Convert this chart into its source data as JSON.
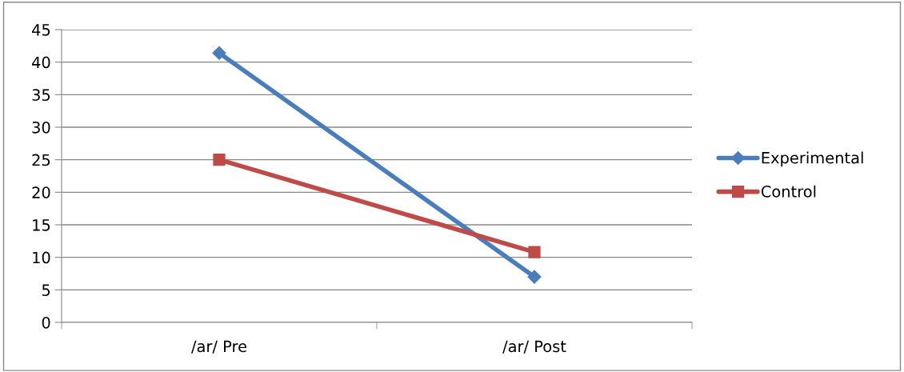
{
  "chart_data": {
    "type": "line",
    "categories": [
      "/ar/ Pre",
      "/ar/ Post"
    ],
    "series": [
      {
        "name": "Experimental",
        "color": "#4a7ebb",
        "marker": "diamond",
        "values": [
          41.4,
          7
        ]
      },
      {
        "name": "Control",
        "color": "#be4b48",
        "marker": "square",
        "values": [
          25,
          10.8
        ]
      }
    ],
    "ylim": [
      0,
      45
    ],
    "yticks": [
      0,
      5,
      10,
      15,
      20,
      25,
      30,
      35,
      40,
      45
    ],
    "grid": "y",
    "legend": "right",
    "line_style": "solid"
  }
}
